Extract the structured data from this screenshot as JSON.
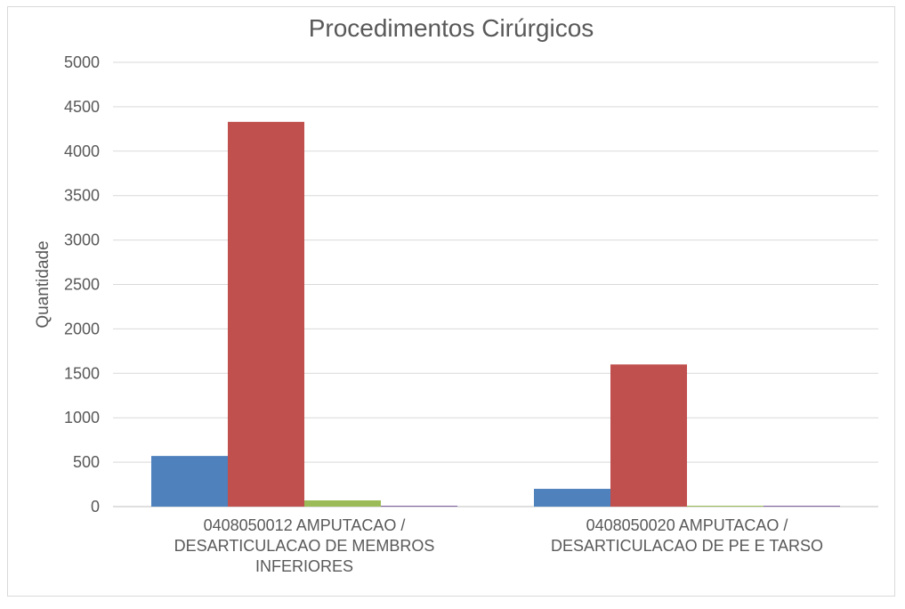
{
  "chart_data": {
    "type": "bar",
    "title": "Procedimentos Cirúrgicos",
    "xlabel": "",
    "ylabel": "Quantidade",
    "ylim": [
      0,
      5000
    ],
    "yticks": [
      0,
      500,
      1000,
      1500,
      2000,
      2500,
      3000,
      3500,
      4000,
      4500,
      5000
    ],
    "grid": true,
    "legend": "none",
    "categories": [
      [
        "0408050012  AMPUTACAO  /",
        "DESARTICULACAO  DE MEMBROS",
        "INFERIORES"
      ],
      [
        "0408050020  AMPUTACAO  /",
        "DESARTICULACAO  DE PE E TARSO"
      ]
    ],
    "series": [
      {
        "color": "#4f81bd",
        "values": [
          570,
          200
        ]
      },
      {
        "color": "#c0504d",
        "values": [
          4330,
          1600
        ]
      },
      {
        "color": "#9bbb59",
        "values": [
          70,
          5
        ]
      },
      {
        "color": "#8064a2",
        "values": [
          5,
          5
        ]
      }
    ]
  }
}
